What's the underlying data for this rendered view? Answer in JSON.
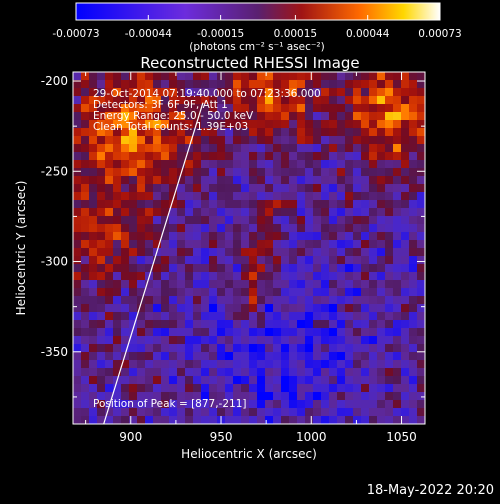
{
  "chart_data": {
    "type": "heatmap",
    "title": "Reconstructed RHESSI Image",
    "xlabel": "Heliocentric X (arcsec)",
    "ylabel": "Heliocentric Y (arcsec)",
    "xlim": [
      868,
      1063
    ],
    "ylim": [
      -390,
      -195
    ],
    "x_ticks": [
      900,
      950,
      1000,
      1050
    ],
    "y_ticks": [
      -200,
      -250,
      -300,
      -350
    ],
    "colorbar": {
      "range": [
        -0.00073,
        0.00073
      ],
      "tick_values": [
        -0.00073,
        -0.00044,
        -0.00015,
        0.00015,
        0.00044,
        0.00073
      ],
      "tick_labels": [
        "-0.00073",
        "-0.00044",
        "-0.00015",
        "0.00015",
        "0.00044",
        "0.00073"
      ],
      "units": "(photons cm⁻² s⁻¹ asec⁻²)"
    },
    "annotations": [
      "29-Oct-2014 07:19:40.000 to 07:23:36.000",
      "Detectors: 3F 6F 9F, Att 1",
      "Energy Range: 25.0 - 50.0 keV",
      "Clean    Total counts: 1.39E+03"
    ],
    "peak_label": "Position of Peak = [877,-211]",
    "limb_line": {
      "x": [
        885,
        940
      ],
      "y": [
        -390,
        -212
      ]
    },
    "grid": false
  },
  "footer": {
    "timestamp": "18-May-2022 20:20"
  }
}
